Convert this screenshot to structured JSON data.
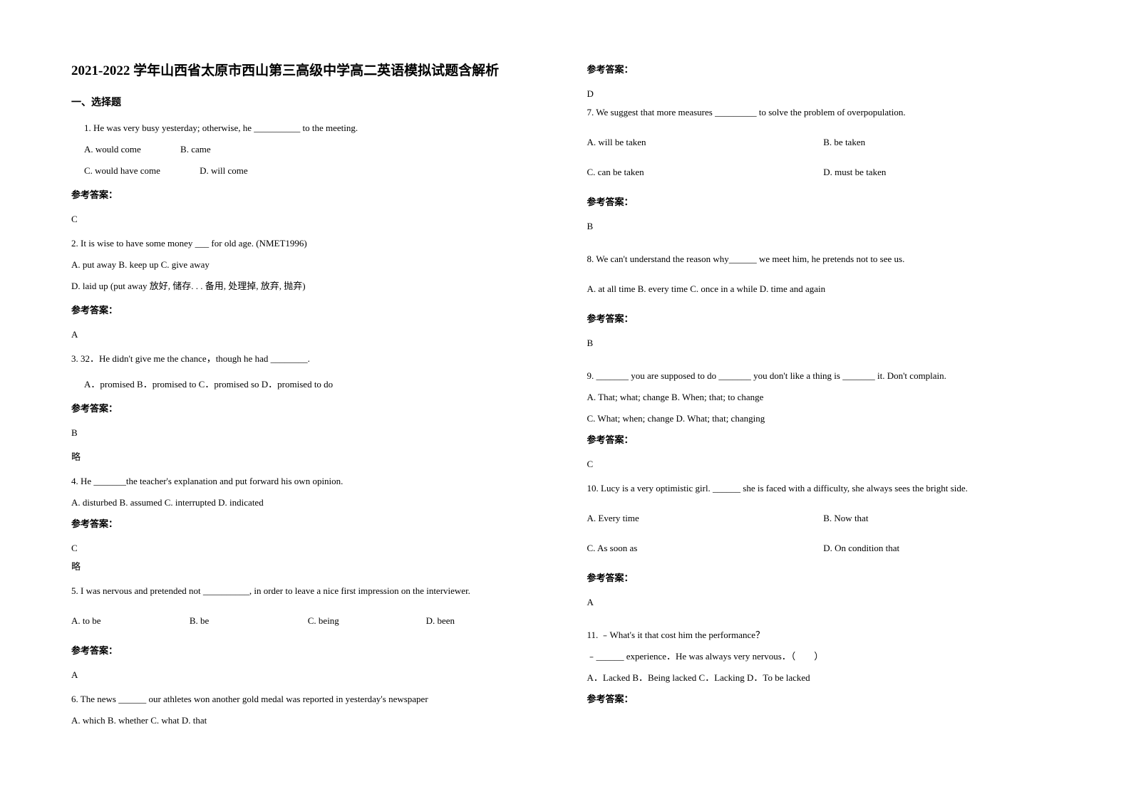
{
  "title": "2021-2022 学年山西省太原市西山第三高级中学高二英语模拟试题含解析",
  "section_header": "一、选择题",
  "answer_label": "参考答案：",
  "omit": "略",
  "q1": {
    "text": "1. He was very busy yesterday; otherwise, he __________ to the meeting.",
    "optA": "A. would come",
    "optB": "B. came",
    "optC": "C. would have come",
    "optD": "D. will come",
    "answer": "C"
  },
  "q2": {
    "text": "2. It is wise to have some money ___ for old age. (NMET1996)",
    "optsABC": "A. put away    B. keep up   C. give away",
    "optD": "D. laid up (put away 放好, 储存. . . 备用, 处理掉, 放弃, 抛弃)",
    "answer": "A"
  },
  "q3": {
    "text": "3. 32．He didn't give me the chance，though he had ________.",
    "opts": "A．promised       B．promised to    C．promised so        D．promised to do",
    "answer": "B"
  },
  "q4": {
    "text": "4. He _______the teacher's explanation and put forward his own opinion.",
    "opts": "  A. disturbed   B. assumed      C. interrupted    D. indicated",
    "answer": "C"
  },
  "q5": {
    "text": "5. I was nervous and pretended not __________, in order to leave a nice first impression on the interviewer.",
    "optA": "A. to be",
    "optB": "B. be",
    "optC": "C. being",
    "optD": "D. been",
    "answer": "A"
  },
  "q6": {
    "text": "6. The news ______ our athletes won another gold medal was reported in yesterday's newspaper",
    "opts": "     A. which        B. whether      C. what          D. that",
    "answer": "D"
  },
  "q7": {
    "text": "7. We suggest that more measures _________ to solve the problem of overpopulation.",
    "optA": "A. will be taken",
    "optB": "B. be taken",
    "optC": "C. can be taken",
    "optD": "D. must be taken",
    "answer": "B"
  },
  "q8": {
    "text": "8. We can't understand the reason why______ we meet him, he pretends not to see us.",
    "opts": "A. at all time    B. every time   C. once in a while   D. time and again",
    "answer": "B"
  },
  "q9": {
    "text": "9. _______ you are supposed to do _______ you don't like a thing is _______ it. Don't complain.",
    "optsAB": "A. That; what; change       B. When; that; to change",
    "optsCD": "C. What; when; change      D. What; that; changing",
    "answer": "C"
  },
  "q10": {
    "text": "10. Lucy is a very optimistic girl. ______ she is faced with a difficulty, she always sees the bright side.",
    "optA": "A. Every time",
    "optB": "B. Now that",
    "optC": "C. As soon as",
    "optD": "D. On condition that",
    "answer": "A"
  },
  "q11": {
    "text1": "11. ﹣What's it that cost him the performance？",
    "text2": "﹣______ experience．He was always very nervous．（　　）",
    "opts": "A．Lacked       B．Being lacked         C．Lacking       D．To be lacked"
  }
}
